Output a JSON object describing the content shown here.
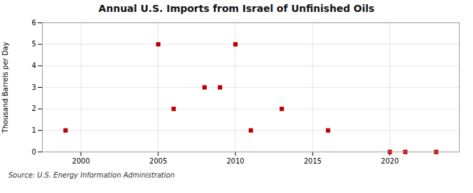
{
  "chart_data": {
    "type": "scatter",
    "title": "Annual U.S. Imports from Israel of Unfinished Oils",
    "ylabel": "Thousand Barrels per Day",
    "caption": "Source: U.S. Energy Information Administration",
    "x": [
      1999,
      2005,
      2006,
      2008,
      2009,
      2010,
      2011,
      2013,
      2016,
      2020,
      2021,
      2023
    ],
    "values": [
      1,
      5,
      2,
      3,
      3,
      5,
      1,
      2,
      1,
      0,
      0,
      0
    ],
    "color": "#bb0000",
    "marker": "square",
    "xlim": [
      1997.5,
      2024.5
    ],
    "xticks": [
      2000,
      2005,
      2010,
      2015,
      2020
    ],
    "ylim": [
      0,
      6
    ],
    "yticks": [
      0,
      1,
      2,
      3,
      4,
      5,
      6
    ],
    "grid": true
  }
}
